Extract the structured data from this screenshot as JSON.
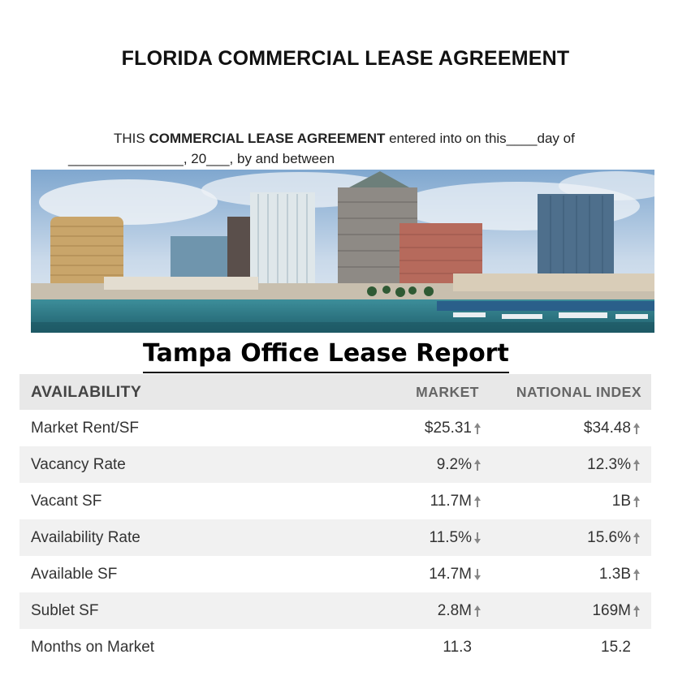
{
  "document": {
    "title": "FLORIDA COMMERCIAL LEASE AGREEMENT",
    "intro_prefix": "THIS ",
    "intro_bold": "COMMERCIAL LEASE AGREEMENT",
    "intro_suffix": " entered into on this____day of",
    "intro_line2": "_______________, 20___, by and between"
  },
  "report": {
    "title": "Tampa Office Lease Report"
  },
  "table": {
    "headers": {
      "label": "AVAILABILITY",
      "market": "MARKET",
      "national": "NATIONAL INDEX"
    },
    "rows": [
      {
        "label": "Market Rent/SF",
        "market": "$25.31",
        "market_trend": "up",
        "national": "$34.48",
        "national_trend": "up"
      },
      {
        "label": "Vacancy Rate",
        "market": "9.2%",
        "market_trend": "up",
        "national": "12.3%",
        "national_trend": "up"
      },
      {
        "label": "Vacant SF",
        "market": "11.7M",
        "market_trend": "up",
        "national": "1B",
        "national_trend": "up"
      },
      {
        "label": "Availability Rate",
        "market": "11.5%",
        "market_trend": "down",
        "national": "15.6%",
        "national_trend": "up"
      },
      {
        "label": "Available SF",
        "market": "14.7M",
        "market_trend": "down",
        "national": "1.3B",
        "national_trend": "up"
      },
      {
        "label": "Sublet SF",
        "market": "2.8M",
        "market_trend": "up",
        "national": "169M",
        "national_trend": "up"
      },
      {
        "label": "Months on Market",
        "market": "11.3",
        "market_trend": "none",
        "national": "15.2",
        "national_trend": "none"
      }
    ]
  },
  "colors": {
    "arrow": "#888888",
    "row_alt": "#f1f1f1",
    "header_bg": "#e8e8e8",
    "water": "#2f7d8c"
  }
}
